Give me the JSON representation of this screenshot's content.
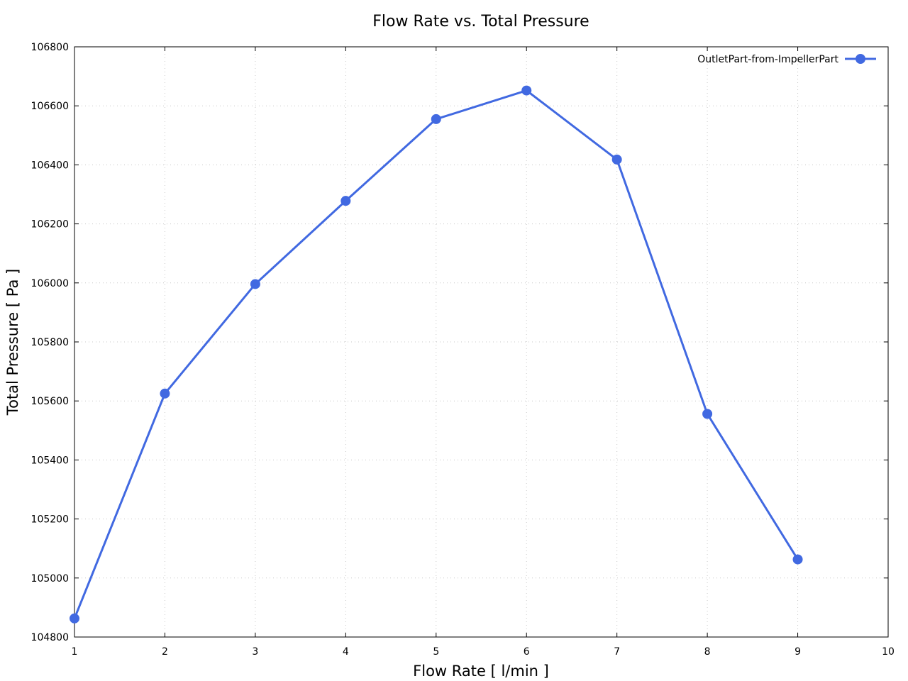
{
  "chart_data": {
    "type": "line",
    "title": "Flow Rate vs. Total Pressure",
    "xlabel": "Flow Rate [ l/min ]",
    "ylabel": "Total Pressure [ Pa ]",
    "xlim": [
      1,
      10
    ],
    "ylim": [
      104800,
      106800
    ],
    "xticks": [
      1,
      2,
      3,
      4,
      5,
      6,
      7,
      8,
      9,
      10
    ],
    "yticks": [
      104800,
      105000,
      105200,
      105400,
      105600,
      105800,
      106000,
      106200,
      106400,
      106600,
      106800
    ],
    "grid": true,
    "legend_position": "top-right",
    "series": [
      {
        "name": "OutletPart-from-ImpellerPart",
        "color": "#4169e1",
        "x": [
          1,
          2,
          3,
          4,
          5,
          6,
          7,
          8,
          9
        ],
        "y": [
          104863,
          105625,
          105996,
          106278,
          106555,
          106652,
          106418,
          105556,
          105063
        ]
      }
    ]
  }
}
